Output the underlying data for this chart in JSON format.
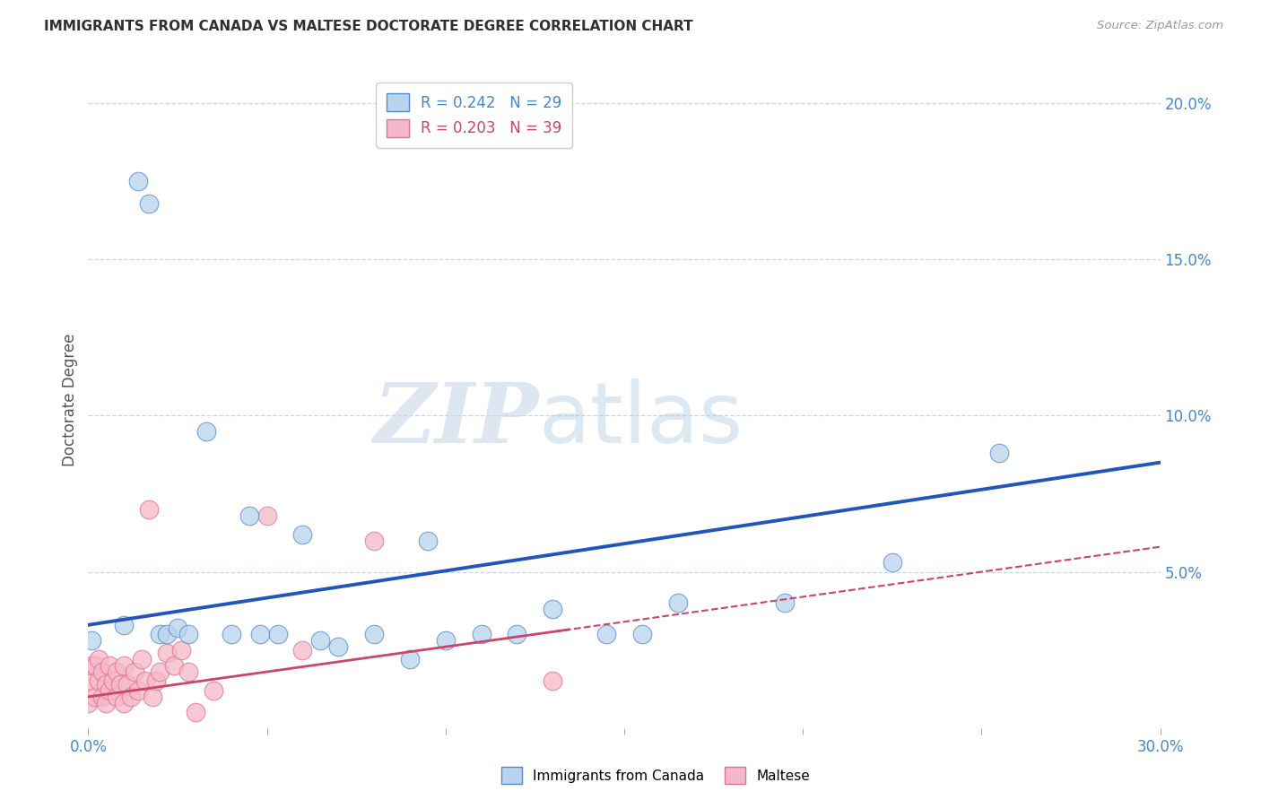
{
  "title": "IMMIGRANTS FROM CANADA VS MALTESE DOCTORATE DEGREE CORRELATION CHART",
  "source": "Source: ZipAtlas.com",
  "ylabel": "Doctorate Degree",
  "xlim": [
    0.0,
    0.3
  ],
  "ylim": [
    0.0,
    0.21
  ],
  "canada_R": 0.242,
  "canada_N": 29,
  "maltese_R": 0.203,
  "maltese_N": 39,
  "canada_color": "#b8d4ec",
  "canada_edge_color": "#5588cc",
  "canada_line_color": "#2255bb",
  "maltese_color": "#f5b8c8",
  "maltese_edge_color": "#e07090",
  "maltese_line_color": "#cc4466",
  "watermark_zip": "ZIP",
  "watermark_atlas": "atlas",
  "background_color": "#ffffff",
  "grid_color": "#c8d4e8",
  "title_color": "#303030",
  "axis_color": "#4488cc",
  "canada_x": [
    0.001,
    0.005,
    0.01,
    0.013,
    0.017,
    0.02,
    0.022,
    0.025,
    0.027,
    0.03,
    0.033,
    0.04,
    0.042,
    0.05,
    0.06,
    0.065,
    0.07,
    0.08,
    0.09,
    0.1,
    0.11,
    0.12,
    0.13,
    0.15,
    0.16,
    0.175,
    0.195,
    0.225,
    0.255
  ],
  "canada_y": [
    0.025,
    0.03,
    0.032,
    0.168,
    0.175,
    0.03,
    0.03,
    0.032,
    0.03,
    0.092,
    0.03,
    0.03,
    0.065,
    0.03,
    0.065,
    0.03,
    0.028,
    0.03,
    0.025,
    0.06,
    0.032,
    0.03,
    0.035,
    0.04,
    0.05,
    0.035,
    0.042,
    0.053,
    0.088
  ],
  "maltese_x": [
    0.0,
    0.001,
    0.001,
    0.002,
    0.002,
    0.003,
    0.003,
    0.004,
    0.004,
    0.005,
    0.005,
    0.006,
    0.006,
    0.007,
    0.008,
    0.008,
    0.009,
    0.01,
    0.01,
    0.011,
    0.012,
    0.013,
    0.014,
    0.015,
    0.016,
    0.017,
    0.018,
    0.02,
    0.022,
    0.024,
    0.026,
    0.028,
    0.03,
    0.035,
    0.04,
    0.05,
    0.06,
    0.08,
    0.13
  ],
  "maltese_y": [
    0.007,
    0.012,
    0.018,
    0.01,
    0.02,
    0.015,
    0.022,
    0.01,
    0.018,
    0.008,
    0.015,
    0.012,
    0.02,
    0.015,
    0.01,
    0.018,
    0.015,
    0.02,
    0.008,
    0.015,
    0.01,
    0.018,
    0.012,
    0.022,
    0.015,
    0.02,
    0.01,
    0.018,
    0.025,
    0.02,
    0.025,
    0.018,
    0.005,
    0.012,
    0.012,
    0.068,
    0.025,
    0.06,
    0.015
  ]
}
